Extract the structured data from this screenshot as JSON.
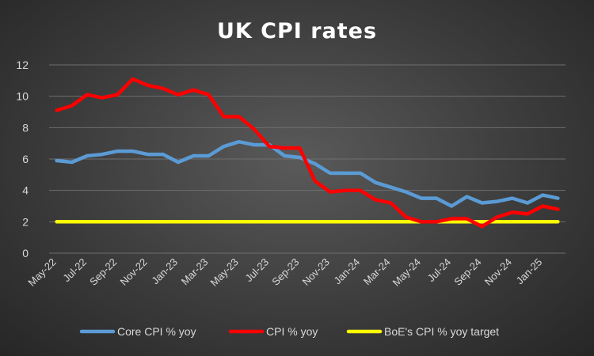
{
  "chart_data": {
    "type": "line",
    "title": "UK CPI rates",
    "xlabel": "",
    "ylabel": "",
    "ylim": [
      0,
      12
    ],
    "yticks": [
      "0",
      "2",
      "4",
      "6",
      "8",
      "10",
      "12"
    ],
    "grid": true,
    "legend_position": "bottom",
    "x": [
      "May-22",
      "Jun-22",
      "Jul-22",
      "Aug-22",
      "Sep-22",
      "Oct-22",
      "Nov-22",
      "Dec-22",
      "Jan-23",
      "Feb-23",
      "Mar-23",
      "Apr-23",
      "May-23",
      "Jun-23",
      "Jul-23",
      "Aug-23",
      "Sep-23",
      "Oct-23",
      "Nov-23",
      "Dec-23",
      "Jan-24",
      "Feb-24",
      "Mar-24",
      "Apr-24",
      "May-24",
      "Jun-24",
      "Jul-24",
      "Aug-24",
      "Sep-24",
      "Oct-24",
      "Nov-24",
      "Dec-24",
      "Jan-25",
      "Feb-25"
    ],
    "xtick_labels": [
      "May-22",
      "Jul-22",
      "Sep-22",
      "Nov-22",
      "Jan-23",
      "Mar-23",
      "May-23",
      "Jul-23",
      "Sep-23",
      "Nov-23",
      "Jan-24",
      "Mar-24",
      "May-24",
      "Jul-24",
      "Sep-24",
      "Nov-24",
      "Jan-25"
    ],
    "series": [
      {
        "name": "Core CPI % yoy",
        "color": "#5b9bd5",
        "values": [
          5.9,
          5.8,
          6.2,
          6.3,
          6.5,
          6.5,
          6.3,
          6.3,
          5.8,
          6.2,
          6.2,
          6.8,
          7.1,
          6.9,
          6.9,
          6.2,
          6.1,
          5.7,
          5.1,
          5.1,
          5.1,
          4.5,
          4.2,
          3.9,
          3.5,
          3.5,
          3.0,
          3.6,
          3.2,
          3.3,
          3.5,
          3.2,
          3.7,
          3.5
        ]
      },
      {
        "name": "CPI % yoy",
        "color": "#ff0000",
        "values": [
          9.1,
          9.4,
          10.1,
          9.9,
          10.1,
          11.1,
          10.7,
          10.5,
          10.1,
          10.4,
          10.1,
          8.7,
          8.7,
          7.9,
          6.8,
          6.7,
          6.7,
          4.6,
          3.9,
          4.0,
          4.0,
          3.4,
          3.2,
          2.3,
          2.0,
          2.0,
          2.2,
          2.2,
          1.7,
          2.3,
          2.6,
          2.5,
          3.0,
          2.8
        ]
      },
      {
        "name": "BoE's CPI % yoy target",
        "color": "#ffff00",
        "values": [
          2,
          2,
          2,
          2,
          2,
          2,
          2,
          2,
          2,
          2,
          2,
          2,
          2,
          2,
          2,
          2,
          2,
          2,
          2,
          2,
          2,
          2,
          2,
          2,
          2,
          2,
          2,
          2,
          2,
          2,
          2,
          2,
          2,
          2
        ]
      }
    ]
  }
}
